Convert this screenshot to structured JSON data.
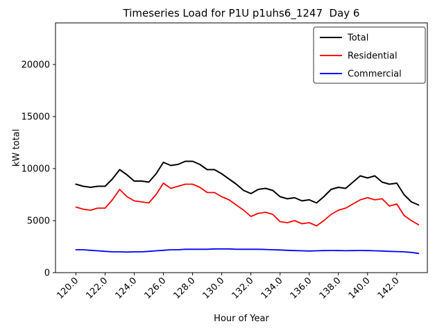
{
  "figure": {
    "title": "Timeseries Load for P1U p1uhs6_1247  Day 6",
    "xlabel": "Hour of Year",
    "ylabel": "kW total"
  },
  "chart_data": {
    "type": "line",
    "title": "Timeseries Load for P1U p1uhs6_1247  Day 6",
    "xlabel": "Hour of Year",
    "ylabel": "kW total",
    "xlim": [
      118.6,
      144.1
    ],
    "ylim": [
      0,
      24000
    ],
    "xticks": [
      120,
      122,
      124,
      126,
      128,
      130,
      132,
      134,
      136,
      138,
      140,
      142
    ],
    "xtick_labels": [
      "120.0",
      "122.0",
      "124.0",
      "126.0",
      "128.0",
      "130.0",
      "132.0",
      "134.0",
      "136.0",
      "138.0",
      "140.0",
      "142.0"
    ],
    "yticks": [
      0,
      5000,
      10000,
      15000,
      20000
    ],
    "grid": false,
    "legend_position": "upper right",
    "x": [
      120.0,
      120.5,
      121.0,
      121.5,
      122.0,
      122.5,
      123.0,
      123.5,
      124.0,
      124.5,
      125.0,
      125.5,
      126.0,
      126.5,
      127.0,
      127.5,
      128.0,
      128.5,
      129.0,
      129.5,
      130.0,
      130.5,
      131.0,
      131.5,
      132.0,
      132.5,
      133.0,
      133.5,
      134.0,
      134.5,
      135.0,
      135.5,
      136.0,
      136.5,
      137.0,
      137.5,
      138.0,
      138.5,
      139.0,
      139.5,
      140.0,
      140.5,
      141.0,
      141.5,
      142.0,
      142.5,
      143.0,
      143.5
    ],
    "series": [
      {
        "name": "Total",
        "color": "#000000",
        "values": [
          8500,
          8300,
          8200,
          8300,
          8300,
          9000,
          9900,
          9400,
          8800,
          8800,
          8700,
          9500,
          10600,
          10300,
          10400,
          10700,
          10700,
          10400,
          9900,
          9900,
          9500,
          9000,
          8500,
          7900,
          7600,
          8000,
          8100,
          7900,
          7300,
          7100,
          7200,
          6900,
          7000,
          6700,
          7300,
          8000,
          8200,
          8100,
          8700,
          9300,
          9100,
          9300,
          8700,
          8500,
          8600,
          7500,
          6800,
          6500
        ]
      },
      {
        "name": "Residential",
        "color": "#ff0000",
        "values": [
          6300,
          6100,
          6000,
          6200,
          6200,
          7000,
          8000,
          7300,
          6900,
          6800,
          6700,
          7500,
          8600,
          8100,
          8300,
          8500,
          8500,
          8200,
          7700,
          7700,
          7300,
          7000,
          6500,
          6000,
          5400,
          5700,
          5800,
          5600,
          4900,
          4800,
          5000,
          4700,
          4800,
          4500,
          5000,
          5600,
          6000,
          6200,
          6600,
          7000,
          7200,
          7000,
          7100,
          6400,
          6600,
          5500,
          5000,
          4600
        ]
      },
      {
        "name": "Commercial",
        "color": "#0000ff",
        "values": [
          2200,
          2200,
          2150,
          2100,
          2050,
          2000,
          2000,
          1980,
          2000,
          2000,
          2050,
          2100,
          2150,
          2200,
          2200,
          2250,
          2250,
          2250,
          2250,
          2280,
          2280,
          2280,
          2250,
          2250,
          2250,
          2250,
          2230,
          2200,
          2180,
          2150,
          2120,
          2100,
          2080,
          2100,
          2120,
          2130,
          2120,
          2110,
          2120,
          2130,
          2120,
          2100,
          2080,
          2050,
          2030,
          2000,
          1950,
          1850
        ]
      }
    ]
  }
}
